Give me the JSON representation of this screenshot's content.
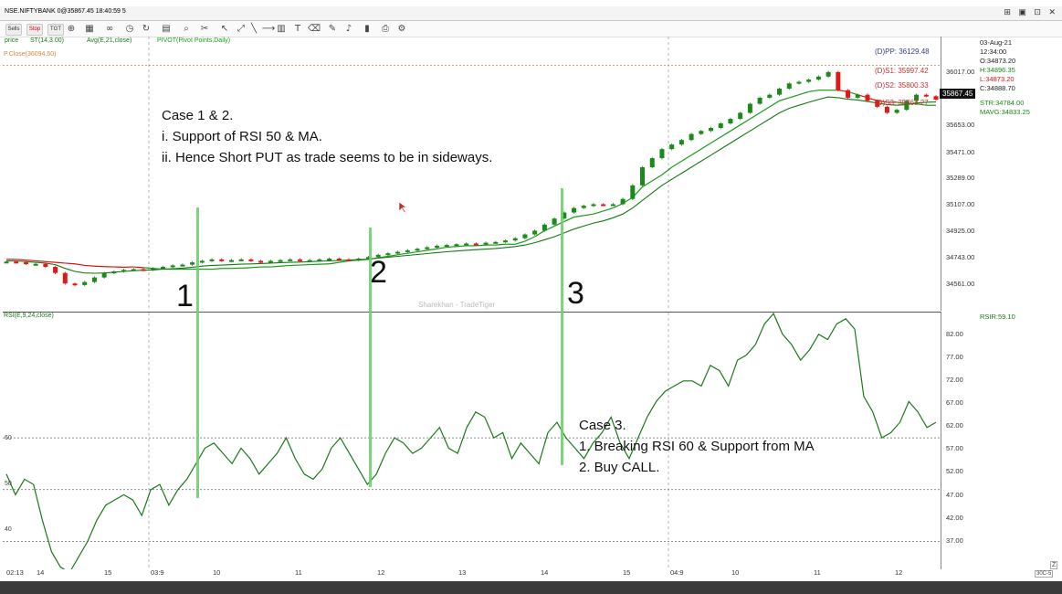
{
  "window": {
    "title": "NSE.NIFTYBANK 0@35867.45 18:40:59 5",
    "controls": "⊞ ▣ ⊡ ✕"
  },
  "toolbar": {
    "buttons": [
      "Sells",
      "Stop",
      "TGT"
    ]
  },
  "indicators": {
    "price": "price",
    "supertrend": "ST(14,3.00)",
    "average": "Avg(E,21,close)",
    "pivot": "PIVOT(Pivot Points,Daily)",
    "prev_close": "P.Close(36094.50)",
    "rsi": "RSI(E,9,24,close)",
    "rsi_value": "RSIR:59.10"
  },
  "pivots": {
    "pp": "(D)PP: 36129.48",
    "s1": "(D)S1: 35997.42",
    "s2": "(D)S2: 35800.33",
    "s3": "(D)S3: 35668.27"
  },
  "info": {
    "date": "03-Aug-21",
    "time": "12:34:00",
    "open": "O:34873.20",
    "high": "H:34896.35",
    "low": "L:34873.20",
    "close": "C:34888.70",
    "str": "STR:34784.00",
    "mavg": "MAVG:34833.25"
  },
  "last_price": "35867.45",
  "watermark": "Sharekhan - TradeTiger",
  "annotations": {
    "case12": [
      "Case 1 & 2.",
      "i. Support of RSI 50 & MA.",
      "ii. Hence Short PUT as trade seems to be in sideways."
    ],
    "case3": [
      "Case 3.",
      "1. Breaking RSI 60 & Support from MA",
      "2. Buy CALL."
    ],
    "markers": [
      "1",
      "2",
      "3"
    ]
  },
  "rsi_ref": {
    "60": "60",
    "50": "50",
    "40": "40"
  },
  "corner": {
    "z": "Z",
    "scale": "30C-5"
  },
  "chart_data": [
    {
      "type": "line",
      "title": "NSE.NIFTYBANK",
      "y_tick_labels": [
        "36017.00",
        "35653.00",
        "35471.00",
        "35289.00",
        "35107.00",
        "34925.00",
        "34743.00",
        "34561.00"
      ],
      "ylim": [
        34470,
        36285
      ],
      "x_tick_labels": [
        "02:13",
        "14",
        "15",
        "03:9",
        "10",
        "11",
        "12",
        "13",
        "14",
        "15",
        "04:9",
        "10",
        "11",
        "12"
      ],
      "series": [
        {
          "name": "price",
          "values": [
            34795,
            34790,
            34780,
            34780,
            34760,
            34720,
            34650,
            34640,
            34660,
            34690,
            34720,
            34730,
            34740,
            34745,
            34740,
            34750,
            34760,
            34770,
            34775,
            34790,
            34800,
            34810,
            34800,
            34805,
            34810,
            34800,
            34790,
            34800,
            34805,
            34810,
            34800,
            34805,
            34810,
            34815,
            34810,
            34805,
            34815,
            34825,
            34840,
            34850,
            34860,
            34870,
            34880,
            34890,
            34900,
            34905,
            34910,
            34915,
            34910,
            34920,
            34925,
            34935,
            34950,
            34975,
            35000,
            35040,
            35080,
            35120,
            35150,
            35165,
            35175,
            35170,
            35175,
            35210,
            35300,
            35420,
            35480,
            35540,
            35570,
            35600,
            35640,
            35660,
            35680,
            35710,
            35740,
            35780,
            35840,
            35880,
            35900,
            35940,
            35975,
            35985,
            36000,
            36020,
            36050,
            35930,
            35880,
            35900,
            35860,
            35820,
            35780,
            35800,
            35860,
            35900,
            35890,
            35867
          ]
        },
        {
          "name": "ST(14,3.00)",
          "values": [
            34810,
            34810,
            34805,
            34800,
            34795,
            34790,
            34785,
            34780,
            34770,
            34765,
            34762,
            34760,
            34758,
            34760,
            34755,
            34750,
            34745,
            34745,
            34745,
            34745,
            34745,
            34745,
            34750,
            34750,
            34752,
            34755,
            34760,
            34760,
            34765,
            34770,
            34772,
            34775,
            34778,
            34780,
            34790,
            34800,
            34805,
            34810,
            34820,
            34830,
            34840,
            34850,
            34860,
            34870,
            34880,
            34890,
            34895,
            34900,
            34900,
            34905,
            34905,
            34910,
            34910,
            34930,
            34960,
            35000,
            35030,
            35060,
            35090,
            35100,
            35110,
            35130,
            35150,
            35180,
            35220,
            35290,
            35330,
            35370,
            35420,
            35460,
            35500,
            35540,
            35580,
            35620,
            35660,
            35700,
            35740,
            35780,
            35820,
            35860,
            35880,
            35900,
            35920,
            35930,
            35930,
            35930,
            35920,
            35900,
            35880,
            35860,
            35850,
            35850,
            35840,
            35840,
            35830,
            35830
          ]
        },
        {
          "name": "Avg(E,21,close)",
          "values": [
            34800,
            34800,
            34795,
            34790,
            34785,
            34775,
            34750,
            34730,
            34720,
            34718,
            34720,
            34725,
            34730,
            34735,
            34738,
            34740,
            34745,
            34748,
            34752,
            34758,
            34765,
            34770,
            34772,
            34775,
            34778,
            34780,
            34782,
            34785,
            34788,
            34790,
            34792,
            34795,
            34798,
            34800,
            34802,
            34805,
            34808,
            34812,
            34818,
            34824,
            34830,
            34836,
            34842,
            34848,
            34855,
            34860,
            34865,
            34870,
            34874,
            34878,
            34882,
            34888,
            34895,
            34905,
            34920,
            34940,
            34960,
            34985,
            35010,
            35030,
            35050,
            35065,
            35085,
            35110,
            35150,
            35200,
            35250,
            35300,
            35340,
            35380,
            35420,
            35460,
            35500,
            35540,
            35580,
            35620,
            35660,
            35700,
            35740,
            35780,
            35810,
            35830,
            35850,
            35868,
            35885,
            35880,
            35870,
            35865,
            35855,
            35845,
            35835,
            35830,
            35835,
            35845,
            35850,
            35852
          ]
        }
      ]
    },
    {
      "type": "line",
      "title": "RSI(E,9,24,close)",
      "y_tick_labels": [
        "82.00",
        "77.00",
        "72.00",
        "67.00",
        "62.00",
        "57.00",
        "52.00",
        "47.00",
        "42.00",
        "37.00"
      ],
      "ylim": [
        34.6,
        84.2
      ],
      "reference_lines": [
        60,
        50,
        40
      ],
      "series": [
        {
          "name": "RSI",
          "values": [
            53,
            49,
            52,
            51,
            44,
            38,
            35,
            34,
            37,
            40,
            44,
            47,
            48,
            49,
            48,
            45,
            50,
            51,
            47,
            50,
            52,
            55,
            58,
            59,
            57,
            55,
            58,
            56,
            53,
            55,
            57,
            60,
            56,
            53,
            52,
            54,
            58,
            60,
            57,
            54,
            51,
            53,
            57,
            60,
            59,
            57,
            58,
            60,
            62,
            58,
            57,
            62,
            65,
            64,
            60,
            61,
            56,
            59,
            57,
            55,
            61,
            63,
            60,
            58,
            56,
            59,
            61,
            64,
            59,
            56,
            60,
            64,
            67,
            69,
            70,
            71,
            71,
            70,
            74,
            73,
            70,
            75,
            76,
            78,
            82,
            84,
            80,
            78,
            75,
            77,
            80,
            79,
            82,
            83,
            81,
            68,
            65,
            60,
            61,
            63,
            67,
            65,
            62,
            63
          ]
        }
      ]
    }
  ]
}
